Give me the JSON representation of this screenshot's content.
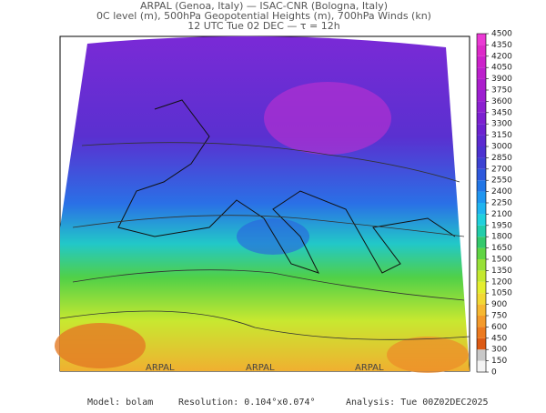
{
  "header": {
    "lines": [
      "ARPAL (Genoa, Italy)  —  ISAC-CNR (Bologna, Italy)",
      "0C level (m), 500hPa Geopotential Heights (m), 700hPa Winds (kn)",
      "12 UTC Tue 02 DEC  —  τ = 12h"
    ]
  },
  "colorbar": {
    "ticks": [
      0,
      150,
      300,
      450,
      600,
      750,
      900,
      1050,
      1200,
      1350,
      1500,
      1650,
      1800,
      1950,
      2100,
      2250,
      2400,
      2550,
      2700,
      2850,
      3000,
      3150,
      3300,
      3450,
      3600,
      3750,
      3900,
      4050,
      4200,
      4350,
      4500
    ],
    "colors": [
      "#f4f4f4",
      "#c8c8c8",
      "#dc5a14",
      "#ec7a20",
      "#f39a2c",
      "#f6b832",
      "#f2d834",
      "#e4ee30",
      "#c4e830",
      "#98e038",
      "#60d444",
      "#34c86c",
      "#22ccaa",
      "#20d0dc",
      "#20b4f0",
      "#2096f0",
      "#2276e6",
      "#2e58dc",
      "#3c42d2",
      "#4c32d0",
      "#5c2ad0",
      "#6c22d0",
      "#7c20d0",
      "#8c20d0",
      "#9c1ed0",
      "#ac1ecc",
      "#bc20cc",
      "#cc22ca",
      "#dc2ac8",
      "#ea3ad4"
    ]
  },
  "watermark": "ARPAL",
  "footer": {
    "model": "Model: bolam",
    "resolution": "Resolution: 0.104°x0.074°",
    "analysis": "Analysis: Tue 00Z02DEC2025"
  }
}
